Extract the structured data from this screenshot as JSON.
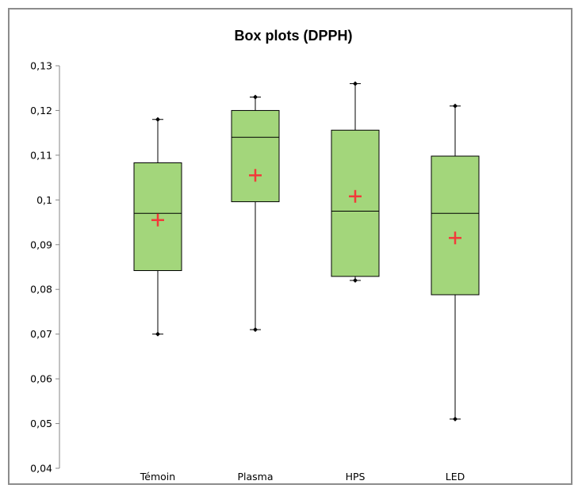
{
  "chart_data": {
    "type": "box",
    "title": "Box plots (DPPH)",
    "xlabel": "",
    "ylabel": "",
    "ylim": [
      0.04,
      0.13
    ],
    "yticks": [
      "0,04",
      "0,05",
      "0,06",
      "0,07",
      "0,08",
      "0,09",
      "0,1",
      "0,11",
      "0,12",
      "0,13"
    ],
    "ytick_values": [
      0.04,
      0.05,
      0.06,
      0.07,
      0.08,
      0.09,
      0.1,
      0.11,
      0.12,
      0.13
    ],
    "categories": [
      "Témoin",
      "Plasma",
      "HPS",
      "LED"
    ],
    "boxes": [
      {
        "category": "Témoin",
        "min": 0.07,
        "q1": 0.0842,
        "median": 0.097,
        "q3": 0.1083,
        "max": 0.118,
        "mean": 0.0955
      },
      {
        "category": "Plasma",
        "min": 0.071,
        "q1": 0.0996,
        "median": 0.114,
        "q3": 0.12,
        "max": 0.123,
        "mean": 0.1055
      },
      {
        "category": "HPS",
        "min": 0.082,
        "q1": 0.0829,
        "median": 0.0975,
        "q3": 0.1156,
        "max": 0.126,
        "mean": 0.1008
      },
      {
        "category": "LED",
        "min": 0.051,
        "q1": 0.0788,
        "median": 0.097,
        "q3": 0.1098,
        "max": 0.121,
        "mean": 0.0915
      }
    ],
    "grid": false,
    "legend": "none",
    "colors": {
      "box_fill": "#a3d67b",
      "box_stroke": "#000000",
      "mean_marker": "#f23a3a",
      "axis": "#868686",
      "frame": "#8c8c8c"
    }
  }
}
